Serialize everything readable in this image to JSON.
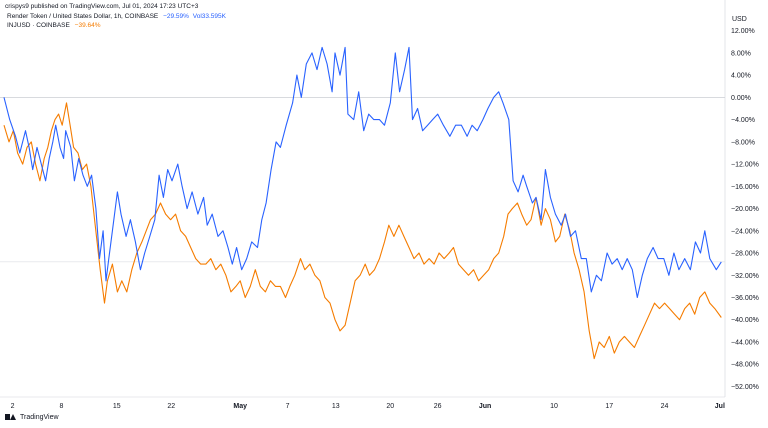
{
  "header": {
    "text": "crispys9 published on TradingView.com, Jul 01, 2024 17:23 UTC+3"
  },
  "legend": {
    "primary": {
      "label": "Render Token / United States Dollar, 1h, COINBASE",
      "change": "−29.59%",
      "volume": "Vol33.595K",
      "color": "#2962ff"
    },
    "secondary": {
      "label": "INJUSD · COINBASE",
      "change": "−39.64%",
      "color": "#f57c00"
    }
  },
  "footer": {
    "brand": "TradingView"
  },
  "chart_data": {
    "type": "line",
    "currency": "USD",
    "y_unit": "percent change",
    "ylim": [
      -53,
      15
    ],
    "xlim": [
      0,
      100
    ],
    "grid": false,
    "zero_line": 0,
    "y_ticks": [
      "12.00%",
      "8.00%",
      "4.00%",
      "0.00%",
      "−4.00%",
      "−8.00%",
      "−12.00%",
      "−16.00%",
      "−20.00%",
      "−24.00%",
      "−28.00%",
      "−32.00%",
      "−36.00%",
      "−40.00%",
      "−44.00%",
      "−48.00%",
      "−52.00%"
    ],
    "y_tick_values": [
      12,
      8,
      4,
      0,
      -4,
      -8,
      -12,
      -16,
      -20,
      -24,
      -28,
      -32,
      -36,
      -40,
      -44,
      -48,
      -52
    ],
    "x_ticks": [
      {
        "label": "2",
        "x": 1.2
      },
      {
        "label": "8",
        "x": 8.0
      },
      {
        "label": "15",
        "x": 15.7
      },
      {
        "label": "22",
        "x": 23.3
      },
      {
        "label": "May",
        "x": 32.9
      },
      {
        "label": "7",
        "x": 39.5
      },
      {
        "label": "13",
        "x": 46.2
      },
      {
        "label": "20",
        "x": 53.8
      },
      {
        "label": "26",
        "x": 60.4
      },
      {
        "label": "Jun",
        "x": 67.0
      },
      {
        "label": "10",
        "x": 76.6
      },
      {
        "label": "17",
        "x": 84.3
      },
      {
        "label": "24",
        "x": 92.0
      },
      {
        "label": "Jul",
        "x": 99.7
      }
    ],
    "series": [
      {
        "name": "Render Token / United States Dollar, 1h, COINBASE",
        "color": "#2962ff",
        "last_value": -29.59,
        "points": [
          [
            0,
            0
          ],
          [
            0.8,
            -4
          ],
          [
            1.6,
            -7
          ],
          [
            2.2,
            -10
          ],
          [
            3,
            -6
          ],
          [
            3.5,
            -9
          ],
          [
            4,
            -13
          ],
          [
            4.6,
            -9
          ],
          [
            5.2,
            -12
          ],
          [
            5.8,
            -15
          ],
          [
            6.3,
            -11
          ],
          [
            6.8,
            -8
          ],
          [
            7.2,
            -5
          ],
          [
            7.8,
            -9
          ],
          [
            8.3,
            -11
          ],
          [
            8.6,
            -6
          ],
          [
            9.3,
            -9
          ],
          [
            9.8,
            -15
          ],
          [
            10.4,
            -11
          ],
          [
            11,
            -14
          ],
          [
            11.6,
            -16
          ],
          [
            12.2,
            -14
          ],
          [
            12.8,
            -20
          ],
          [
            13.3,
            -29
          ],
          [
            13.8,
            -24
          ],
          [
            14.2,
            -33
          ],
          [
            14.6,
            -29
          ],
          [
            15.1,
            -24
          ],
          [
            15.8,
            -17
          ],
          [
            16.3,
            -21
          ],
          [
            17,
            -25
          ],
          [
            17.6,
            -22
          ],
          [
            18.3,
            -26
          ],
          [
            19,
            -31
          ],
          [
            19.6,
            -28
          ],
          [
            20.3,
            -25
          ],
          [
            21,
            -22
          ],
          [
            21.6,
            -14
          ],
          [
            22.2,
            -18
          ],
          [
            22.8,
            -13
          ],
          [
            23.4,
            -15
          ],
          [
            24.2,
            -12
          ],
          [
            24.8,
            -16
          ],
          [
            25.5,
            -20
          ],
          [
            26.2,
            -17
          ],
          [
            27,
            -21
          ],
          [
            27.8,
            -18
          ],
          [
            28.3,
            -23
          ],
          [
            29,
            -21
          ],
          [
            29.8,
            -25
          ],
          [
            30.5,
            -24
          ],
          [
            31.2,
            -27
          ],
          [
            31.8,
            -30
          ],
          [
            32.4,
            -27
          ],
          [
            33.1,
            -31
          ],
          [
            33.8,
            -29
          ],
          [
            34.5,
            -26
          ],
          [
            35.3,
            -27
          ],
          [
            35.9,
            -22
          ],
          [
            36.5,
            -19
          ],
          [
            37.2,
            -13
          ],
          [
            37.9,
            -8
          ],
          [
            38.5,
            -9
          ],
          [
            39.3,
            -5
          ],
          [
            40.2,
            -1
          ],
          [
            40.8,
            4
          ],
          [
            41.4,
            0
          ],
          [
            42.1,
            6
          ],
          [
            42.9,
            8
          ],
          [
            43.6,
            5
          ],
          [
            44.3,
            9
          ],
          [
            45,
            6
          ],
          [
            45.7,
            1
          ],
          [
            46.1,
            8
          ],
          [
            46.8,
            4
          ],
          [
            47.5,
            9
          ],
          [
            47.9,
            -3
          ],
          [
            48.7,
            -4
          ],
          [
            49.4,
            1
          ],
          [
            50.1,
            -6
          ],
          [
            50.8,
            -3
          ],
          [
            51.5,
            -4
          ],
          [
            52.3,
            -4
          ],
          [
            53,
            -5
          ],
          [
            53.8,
            -1
          ],
          [
            54.5,
            8
          ],
          [
            55.1,
            1
          ],
          [
            55.8,
            5
          ],
          [
            56.4,
            9
          ],
          [
            56.9,
            -4
          ],
          [
            57.6,
            -2
          ],
          [
            58.3,
            -6
          ],
          [
            59,
            -5
          ],
          [
            59.7,
            -4
          ],
          [
            60.4,
            -3
          ],
          [
            61.2,
            -5
          ],
          [
            62.1,
            -7
          ],
          [
            62.9,
            -5
          ],
          [
            63.7,
            -5
          ],
          [
            64.5,
            -7
          ],
          [
            65.2,
            -5
          ],
          [
            65.9,
            -6
          ],
          [
            66.7,
            -4
          ],
          [
            67.4,
            -2
          ],
          [
            68.2,
            0
          ],
          [
            68.9,
            1
          ],
          [
            69.5,
            -1
          ],
          [
            70.3,
            -4
          ],
          [
            70.9,
            -15
          ],
          [
            71.6,
            -17
          ],
          [
            72.3,
            -14
          ],
          [
            72.8,
            -16
          ],
          [
            73.6,
            -19
          ],
          [
            74.1,
            -18
          ],
          [
            74.8,
            -22
          ],
          [
            75.4,
            -13
          ],
          [
            76.1,
            -18
          ],
          [
            76.8,
            -21
          ],
          [
            77.6,
            -23
          ],
          [
            78.2,
            -21
          ],
          [
            78.9,
            -25
          ],
          [
            79.6,
            -24
          ],
          [
            80.4,
            -29
          ],
          [
            81.1,
            -29
          ],
          [
            81.8,
            -35
          ],
          [
            82.5,
            -32
          ],
          [
            83.2,
            -33
          ],
          [
            84,
            -28
          ],
          [
            84.7,
            -30
          ],
          [
            85.4,
            -29
          ],
          [
            86.1,
            -31
          ],
          [
            86.8,
            -29
          ],
          [
            87.5,
            -31
          ],
          [
            88.2,
            -36
          ],
          [
            88.9,
            -32
          ],
          [
            89.6,
            -29
          ],
          [
            90.4,
            -27
          ],
          [
            91.1,
            -29
          ],
          [
            91.9,
            -29
          ],
          [
            92.6,
            -32
          ],
          [
            93.3,
            -28
          ],
          [
            94,
            -31
          ],
          [
            94.8,
            -29
          ],
          [
            95.6,
            -31
          ],
          [
            96.3,
            -26
          ],
          [
            97,
            -28
          ],
          [
            97.6,
            -24
          ],
          [
            98.3,
            -29
          ],
          [
            99.2,
            -31
          ],
          [
            99.9,
            -29.6
          ]
        ]
      },
      {
        "name": "INJUSD · COINBASE",
        "color": "#f57c00",
        "last_value": -39.64,
        "points": [
          [
            0,
            -5
          ],
          [
            0.7,
            -8
          ],
          [
            1.3,
            -6
          ],
          [
            1.9,
            -10
          ],
          [
            2.6,
            -12
          ],
          [
            3.2,
            -9
          ],
          [
            3.8,
            -8
          ],
          [
            4.4,
            -12
          ],
          [
            5,
            -15
          ],
          [
            5.6,
            -11
          ],
          [
            6.1,
            -9
          ],
          [
            6.6,
            -6
          ],
          [
            7.1,
            -4
          ],
          [
            7.6,
            -3
          ],
          [
            8.1,
            -5
          ],
          [
            8.7,
            -1
          ],
          [
            9.2,
            -5
          ],
          [
            9.7,
            -9
          ],
          [
            10.3,
            -10
          ],
          [
            10.9,
            -13
          ],
          [
            11.5,
            -12
          ],
          [
            12.1,
            -16
          ],
          [
            12.7,
            -23
          ],
          [
            13.4,
            -31
          ],
          [
            14,
            -37
          ],
          [
            14.4,
            -33
          ],
          [
            15.1,
            -30
          ],
          [
            15.8,
            -35
          ],
          [
            16.4,
            -33
          ],
          [
            17.1,
            -35
          ],
          [
            17.8,
            -31
          ],
          [
            18.5,
            -28
          ],
          [
            19.2,
            -26
          ],
          [
            19.8,
            -24
          ],
          [
            20.4,
            -22
          ],
          [
            21.1,
            -21
          ],
          [
            21.8,
            -19
          ],
          [
            22.5,
            -21
          ],
          [
            23.2,
            -22
          ],
          [
            23.9,
            -21
          ],
          [
            24.6,
            -24
          ],
          [
            25.3,
            -25
          ],
          [
            26,
            -27
          ],
          [
            26.7,
            -29
          ],
          [
            27.4,
            -30
          ],
          [
            28.1,
            -30
          ],
          [
            28.8,
            -29
          ],
          [
            29.5,
            -31
          ],
          [
            30.2,
            -30
          ],
          [
            30.9,
            -32
          ],
          [
            31.6,
            -35
          ],
          [
            32.3,
            -34
          ],
          [
            32.9,
            -33
          ],
          [
            33.6,
            -36
          ],
          [
            34.3,
            -34
          ],
          [
            35,
            -31
          ],
          [
            35.7,
            -34
          ],
          [
            36.4,
            -35
          ],
          [
            37.1,
            -33
          ],
          [
            37.8,
            -34
          ],
          [
            38.5,
            -34
          ],
          [
            39.2,
            -36
          ],
          [
            39.8,
            -34
          ],
          [
            40.5,
            -32
          ],
          [
            41.3,
            -29
          ],
          [
            41.9,
            -31
          ],
          [
            42.6,
            -30
          ],
          [
            43.3,
            -32
          ],
          [
            44,
            -33
          ],
          [
            44.7,
            -36
          ],
          [
            45.4,
            -37
          ],
          [
            46.1,
            -40
          ],
          [
            46.8,
            -42
          ],
          [
            47.5,
            -41
          ],
          [
            48.2,
            -37
          ],
          [
            48.9,
            -33
          ],
          [
            49.6,
            -32
          ],
          [
            50.3,
            -30
          ],
          [
            50.9,
            -32
          ],
          [
            51.6,
            -31
          ],
          [
            52.3,
            -29
          ],
          [
            53,
            -26
          ],
          [
            53.6,
            -23
          ],
          [
            54.3,
            -25
          ],
          [
            55,
            -23
          ],
          [
            55.7,
            -25
          ],
          [
            56.4,
            -27
          ],
          [
            57.1,
            -29
          ],
          [
            57.8,
            -28
          ],
          [
            58.5,
            -30
          ],
          [
            59.2,
            -29
          ],
          [
            59.9,
            -30
          ],
          [
            60.6,
            -28
          ],
          [
            61.3,
            -29
          ],
          [
            62,
            -28
          ],
          [
            62.6,
            -27
          ],
          [
            63.3,
            -30
          ],
          [
            64,
            -31
          ],
          [
            64.7,
            -32
          ],
          [
            65.4,
            -31
          ],
          [
            66.1,
            -33
          ],
          [
            66.8,
            -32
          ],
          [
            67.5,
            -31
          ],
          [
            68.2,
            -29
          ],
          [
            68.9,
            -28
          ],
          [
            69.6,
            -25
          ],
          [
            70.2,
            -21
          ],
          [
            70.8,
            -20
          ],
          [
            71.5,
            -19
          ],
          [
            72.1,
            -21
          ],
          [
            72.8,
            -23
          ],
          [
            73.4,
            -22
          ],
          [
            74.1,
            -18
          ],
          [
            74.8,
            -23
          ],
          [
            75.4,
            -20
          ],
          [
            76.1,
            -22
          ],
          [
            76.8,
            -26
          ],
          [
            77.4,
            -25
          ],
          [
            78.1,
            -21
          ],
          [
            78.8,
            -24
          ],
          [
            79.4,
            -28
          ],
          [
            80.1,
            -31
          ],
          [
            80.8,
            -35
          ],
          [
            81.5,
            -42
          ],
          [
            82.2,
            -47
          ],
          [
            82.9,
            -44
          ],
          [
            83.6,
            -45
          ],
          [
            84.3,
            -43
          ],
          [
            85,
            -46
          ],
          [
            85.7,
            -44
          ],
          [
            86.4,
            -43
          ],
          [
            87.1,
            -44
          ],
          [
            87.8,
            -45
          ],
          [
            88.5,
            -43
          ],
          [
            89.2,
            -41
          ],
          [
            89.9,
            -39
          ],
          [
            90.6,
            -37
          ],
          [
            91.3,
            -38
          ],
          [
            92,
            -37
          ],
          [
            92.7,
            -38
          ],
          [
            93.4,
            -39
          ],
          [
            94.1,
            -40
          ],
          [
            94.8,
            -38
          ],
          [
            95.5,
            -37
          ],
          [
            96.2,
            -39
          ],
          [
            96.9,
            -36
          ],
          [
            97.6,
            -35
          ],
          [
            98.3,
            -37
          ],
          [
            99,
            -38
          ],
          [
            99.9,
            -39.6
          ]
        ]
      }
    ]
  }
}
